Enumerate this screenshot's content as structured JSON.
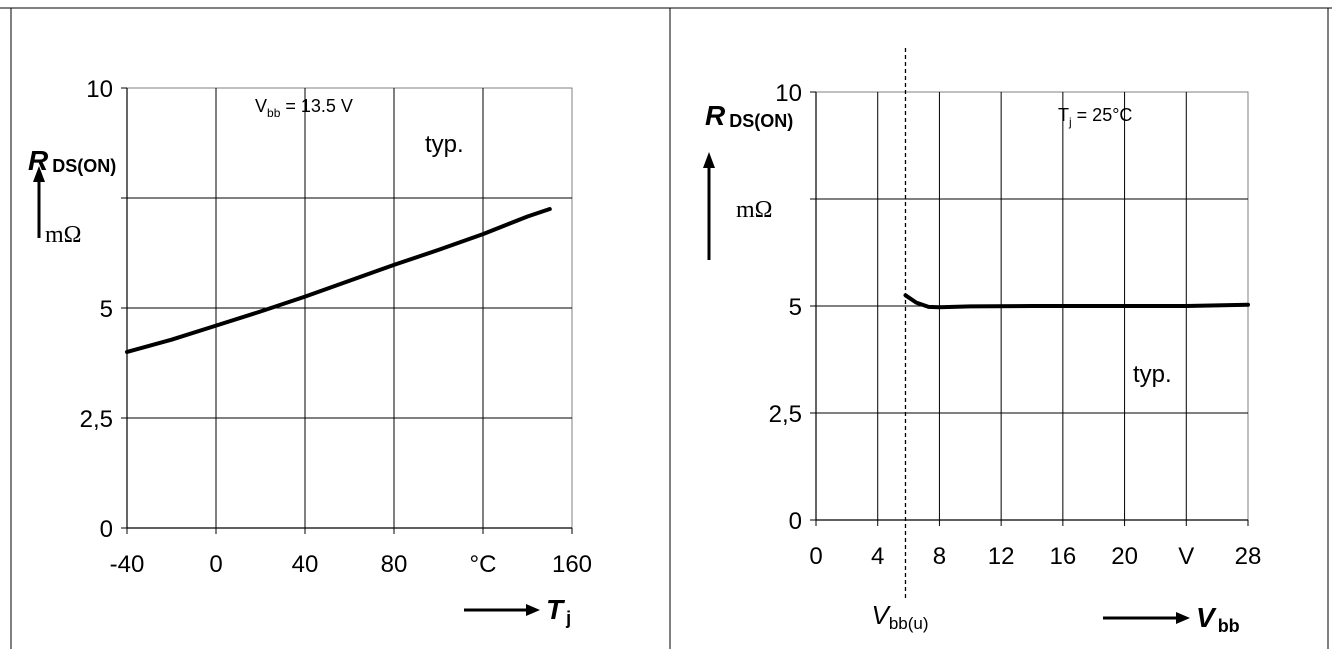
{
  "chart_data": [
    {
      "type": "line",
      "ylabel_main": "R",
      "ylabel_sub": "DS(ON)",
      "yunit": "mΩ",
      "xlabel_main": "T",
      "xlabel_sub": "j",
      "xunit_tick": "°C",
      "annotation_cond": {
        "main": "V",
        "sub": "bb",
        "rest": " = 13.5 V"
      },
      "annotation_typ": "typ.",
      "xlim": [
        -40,
        160
      ],
      "ylim": [
        0,
        10
      ],
      "grid": true,
      "x_ticks": [
        {
          "value": -40,
          "label": "-40"
        },
        {
          "value": 0,
          "label": "0"
        },
        {
          "value": 40,
          "label": "40"
        },
        {
          "value": 80,
          "label": "80"
        },
        {
          "value": 120,
          "label": "°C"
        },
        {
          "value": 160,
          "label": "160"
        }
      ],
      "y_ticks": [
        {
          "value": 0,
          "label": "0"
        },
        {
          "value": 2.5,
          "label": "2,5"
        },
        {
          "value": 5,
          "label": "5"
        },
        {
          "value": 7.5,
          "label": ""
        },
        {
          "value": 10,
          "label": "10"
        }
      ],
      "series": [
        {
          "x": [
            -40,
            -20,
            0,
            20,
            40,
            60,
            80,
            100,
            120,
            140,
            150
          ],
          "y": [
            4.0,
            4.28,
            4.6,
            4.92,
            5.26,
            5.62,
            5.98,
            6.32,
            6.68,
            7.08,
            7.25
          ]
        }
      ]
    },
    {
      "type": "line",
      "ylabel_main": "R",
      "ylabel_sub": "DS(ON)",
      "yunit": "mΩ",
      "xlabel_main": "V",
      "xlabel_sub": "bb",
      "annotation_cond": {
        "main": "T",
        "sub": "j",
        "rest": " = 25°C"
      },
      "annotation_typ": "typ.",
      "threshold_label_main": "V",
      "threshold_label_sub": "bb(u)",
      "threshold_x": 5.8,
      "xlim": [
        0,
        28
      ],
      "ylim": [
        0,
        10
      ],
      "grid": true,
      "x_ticks": [
        {
          "value": 0,
          "label": "0"
        },
        {
          "value": 4,
          "label": "4"
        },
        {
          "value": 8,
          "label": "8"
        },
        {
          "value": 12,
          "label": "12"
        },
        {
          "value": 16,
          "label": "16"
        },
        {
          "value": 20,
          "label": "20"
        },
        {
          "value": 24,
          "label": "V"
        },
        {
          "value": 28,
          "label": "28"
        }
      ],
      "y_ticks": [
        {
          "value": 0,
          "label": "0"
        },
        {
          "value": 2.5,
          "label": "2,5"
        },
        {
          "value": 5,
          "label": "5"
        },
        {
          "value": 7.5,
          "label": ""
        },
        {
          "value": 10,
          "label": "10"
        }
      ],
      "series": [
        {
          "x": [
            5.8,
            6.5,
            7.3,
            8,
            10,
            14,
            20,
            24,
            28
          ],
          "y": [
            5.25,
            5.08,
            4.98,
            4.97,
            4.99,
            5.0,
            5.0,
            5.0,
            5.03
          ]
        }
      ]
    }
  ]
}
